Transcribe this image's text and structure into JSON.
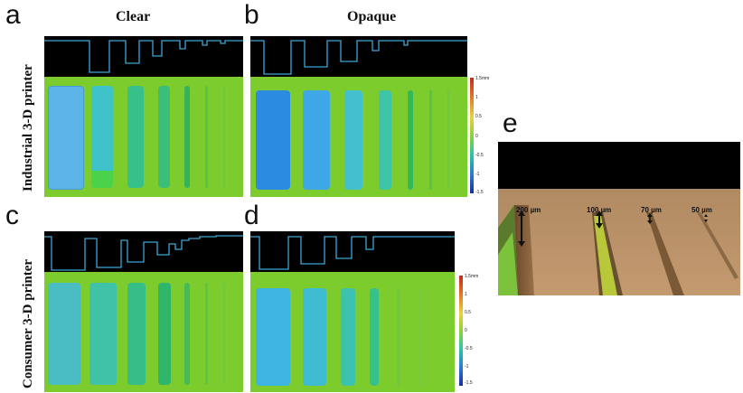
{
  "panels": {
    "a": "a",
    "b": "b",
    "c": "c",
    "d": "d",
    "e": "e"
  },
  "columns": {
    "clear": "Clear",
    "opaque": "Opaque"
  },
  "rows": {
    "industrial": "Industrial 3-D printer",
    "consumer": "Consumer 3-D printer"
  },
  "colorbar_top": {
    "max": "1.5mm",
    "t1": "1",
    "t2": "0.5",
    "t3": "0",
    "t4": "-0.5",
    "t5": "-1",
    "min": "-1.5"
  },
  "colorbar_bottom": {
    "max": "1.5mm",
    "t1": "1",
    "t2": "0.5",
    "t3": "0",
    "t4": "-0.5",
    "t5": "-1",
    "min": "-1.5"
  },
  "channels": {
    "w200": "200 µm",
    "w100": "100 µm",
    "w70": "70 µm",
    "w50": "50 µm"
  },
  "colors": {
    "substrate": "#7ccc2e",
    "profile_bg": "#000000",
    "trace": "#3aa6d6"
  }
}
